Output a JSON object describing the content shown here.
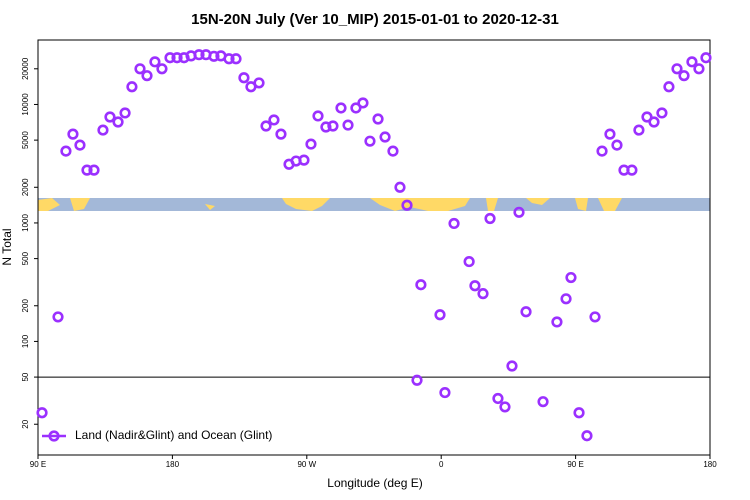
{
  "chart_data": {
    "type": "scatter",
    "title": "15N-20N July (Ver 10_MIP)   2015-01-01 to 2020-12-31",
    "x_label": "Longitude (deg E)",
    "y_label": "N Total",
    "xlim": [
      90,
      540
    ],
    "xticks": [
      {
        "value": 90,
        "label": "90 E"
      },
      180,
      {
        "value": 270,
        "label": "90 W"
      },
      {
        "value": 360,
        "label": "0"
      },
      {
        "value": 450,
        "label": "90 E"
      },
      {
        "value": 540,
        "label": "180"
      }
    ],
    "ylim": [
      11,
      35000
    ],
    "yticks": [
      20,
      50,
      100,
      200,
      500,
      1000,
      2000,
      5000,
      10000,
      20000
    ],
    "ylog": true,
    "reference_line": 50,
    "legend": "lower left",
    "series": [
      {
        "name": "Land (Nadir&Glint) and Ocean (Glint)",
        "color": "#9b30ff",
        "x": [
          92.7,
          103.4,
          108.7,
          113.4,
          118.1,
          122.8,
          127.5,
          133.5,
          138.2,
          143.6,
          148.3,
          152.9,
          158.3,
          163.0,
          168.3,
          173.0,
          178.4,
          183.1,
          187.8,
          192.5,
          197.8,
          202.5,
          207.8,
          212.5,
          217.9,
          222.6,
          227.9,
          232.6,
          238.0,
          242.7,
          248.0,
          252.7,
          258.1,
          262.8,
          268.1,
          272.8,
          277.5,
          282.8,
          287.5,
          292.9,
          297.6,
          302.9,
          307.6,
          312.3,
          317.7,
          322.4,
          327.7,
          332.4,
          337.1,
          343.8,
          346.4,
          359.2,
          362.5,
          368.6,
          378.7,
          382.6,
          388.0,
          392.7,
          398.0,
          402.7,
          407.4,
          412.1,
          416.8,
          428.2,
          437.5,
          443.6,
          446.9,
          452.3,
          457.6,
          463.0,
          467.7,
          473.0,
          477.7,
          482.4,
          487.7,
          492.4,
          497.8,
          502.5,
          507.8,
          512.5,
          517.9,
          522.6,
          527.9,
          532.6,
          537.3
        ],
        "values": [
          25,
          161,
          4040,
          5620,
          4540,
          2790,
          2790,
          6080,
          7840,
          7110,
          8480,
          14100,
          20000,
          17500,
          22900,
          20000,
          24800,
          24800,
          24800,
          25700,
          26300,
          26300,
          25500,
          25700,
          24300,
          24300,
          16800,
          14100,
          15200,
          6580,
          7400,
          5620,
          3130,
          3330,
          3390,
          4630,
          8000,
          6450,
          6580,
          9340,
          6700,
          9340,
          10300,
          4900,
          7540,
          5310,
          4040,
          2000,
          1410,
          47,
          301,
          168,
          37,
          990,
          472,
          295,
          253,
          1090,
          33,
          28,
          62,
          1230,
          178,
          31,
          146,
          229,
          346,
          25,
          16,
          161,
          4040,
          5620,
          4540,
          2790,
          2790,
          6080,
          7840,
          7110,
          8480,
          14100,
          20000,
          17500,
          22900,
          20000,
          24800
        ]
      }
    ]
  }
}
